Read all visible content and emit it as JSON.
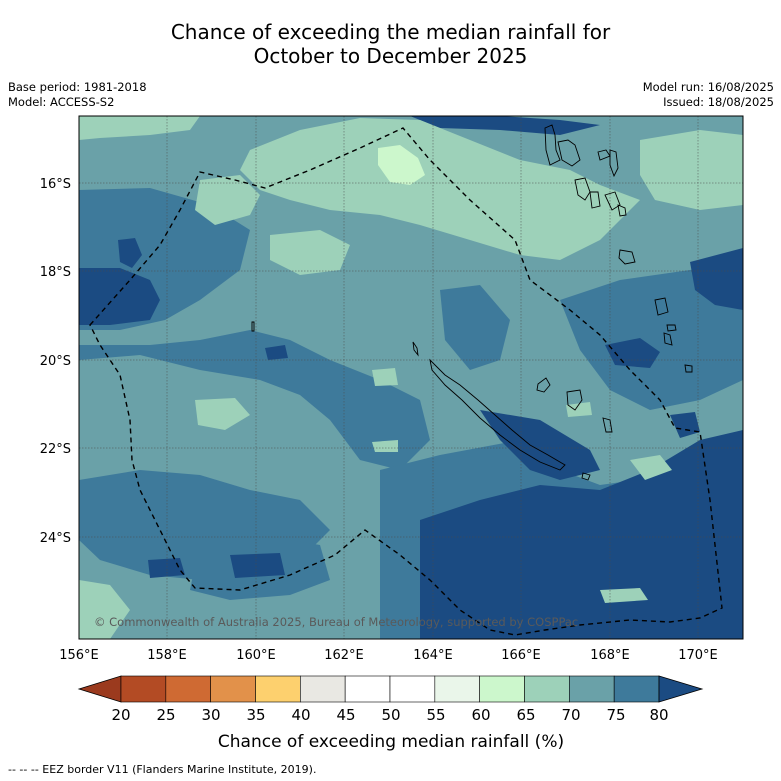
{
  "title_line1": "Chance of exceeding the median rainfall for",
  "title_line2": "October to December 2025",
  "meta_left": {
    "base_period": "Base period: 1981-2018",
    "model": "Model: ACCESS-S2"
  },
  "meta_right": {
    "model_run": "Model run: 16/08/2025",
    "issued": "Issued: 18/08/2025"
  },
  "map": {
    "lat_labels": [
      "16°S",
      "18°S",
      "20°S",
      "22°S",
      "24°S"
    ],
    "lon_labels": [
      "156°E",
      "158°E",
      "160°E",
      "162°E",
      "164°E",
      "166°E",
      "168°E",
      "170°E"
    ],
    "copyright": "© Commonwealth of Australia 2025, Bureau of Meteorology, supported by COSPPac"
  },
  "legend": {
    "tick_labels": [
      "20",
      "25",
      "30",
      "35",
      "40",
      "45",
      "50",
      "55",
      "60",
      "65",
      "70",
      "75",
      "80"
    ],
    "colors": [
      "#b34b24",
      "#cf6a33",
      "#e2914a",
      "#fdd06e",
      "#e9e8e3",
      "#ffffff",
      "#ffffff",
      "#eaf6ea",
      "#ccf7cc",
      "#9dd1b9",
      "#6aa1a8",
      "#3e7a9b"
    ],
    "low_extend_color": "#9b3a1e",
    "high_extend_color": "#1b4b82",
    "label": "Chance of exceeding median rainfall (%)"
  },
  "footnote": "--  --  -- EEZ border V11 (Flanders Marine Institute, 2019)."
}
